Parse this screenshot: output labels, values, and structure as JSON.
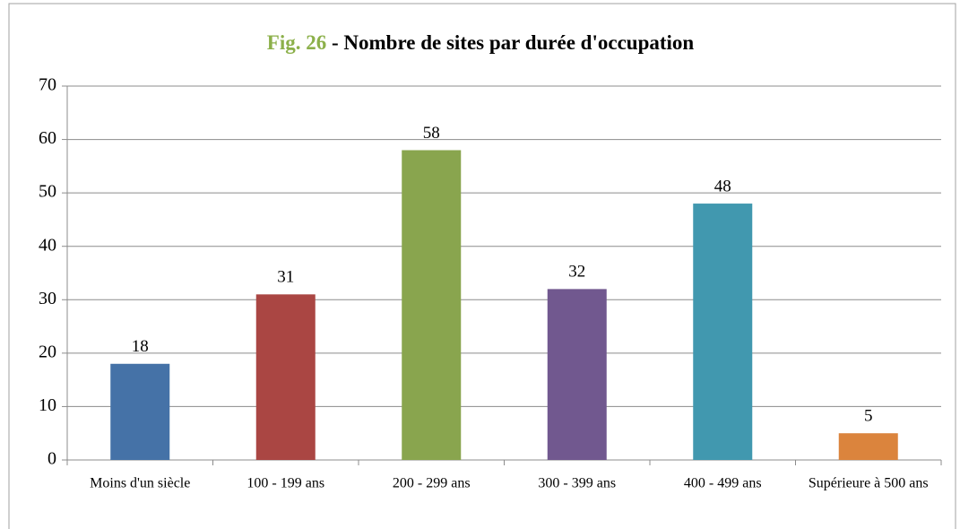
{
  "chart_data": {
    "type": "bar",
    "title": {
      "figure": "Fig. 26",
      "text": "- Nombre de sites par durée d'occupation"
    },
    "title_figure_color": "#8cb04a",
    "categories": [
      "Moins d'un siècle",
      "100 - 199 ans",
      "200 - 299 ans",
      "300 - 399 ans",
      "400 - 499 ans",
      "Supérieure à 500 ans"
    ],
    "values": [
      18,
      31,
      58,
      32,
      48,
      5
    ],
    "colors": [
      "#4572a7",
      "#aa4643",
      "#89a54e",
      "#71588f",
      "#4198af",
      "#db843d"
    ],
    "ylim": [
      0,
      70
    ],
    "yticks": [
      0,
      10,
      20,
      30,
      40,
      50,
      60,
      70
    ],
    "grid": true
  }
}
